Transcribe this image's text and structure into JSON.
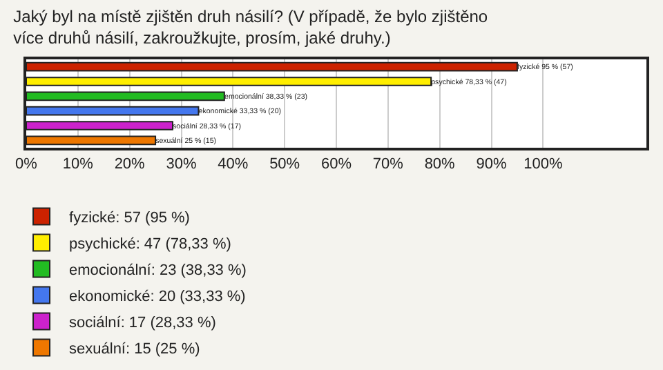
{
  "chart_data": {
    "type": "bar",
    "orientation": "horizontal",
    "title": "Jaký byl na místě zjištěn druh násilí? (V případě, že bylo zjištěno více druhů násilí, zakroužkujte, prosím, jaké druhy.)",
    "categories": [
      null,
      null,
      null,
      null,
      null,
      null
    ],
    "series": [
      {
        "name": "fyzické: 57 (95 %)",
        "color": "#cc2200",
        "values": [
          95,
          null,
          null,
          null,
          null,
          null
        ],
        "value_labels": [
          "fyzické 95 % (57)",
          null,
          null,
          null,
          null,
          null
        ]
      },
      {
        "name": "psychické: 47 (78,33 %)",
        "color": "#ffee00",
        "values": [
          null,
          78.33,
          null,
          null,
          null,
          null
        ],
        "value_labels": [
          null,
          "psychické 78,33 % (47)",
          null,
          null,
          null,
          null
        ]
      },
      {
        "name": "emocionální: 23 (38,33 %)",
        "color": "#22bb22",
        "values": [
          null,
          null,
          38.33,
          null,
          null,
          null
        ],
        "value_labels": [
          null,
          null,
          "emocionální 38,33 % (23)",
          null,
          null,
          null
        ]
      },
      {
        "name": "ekonomické: 20 (33,33 %)",
        "color": "#4477ee",
        "values": [
          null,
          null,
          null,
          33.33,
          null,
          null
        ],
        "value_labels": [
          null,
          null,
          null,
          "ekonomické 33,33 % (20)",
          null,
          null
        ]
      },
      {
        "name": "sociální: 17 (28,33 %)",
        "color": "#cc22cc",
        "values": [
          null,
          null,
          null,
          null,
          28.33,
          null
        ],
        "value_labels": [
          null,
          null,
          null,
          null,
          "sociální 28,33 % (17)",
          null
        ]
      },
      {
        "name": "sexuální: 15 (25 %)",
        "color": "#ee7700",
        "values": [
          null,
          null,
          null,
          null,
          null,
          25
        ],
        "value_labels": [
          null,
          null,
          null,
          null,
          null,
          "sexuální 25 % (15)"
        ]
      }
    ],
    "xlim": [
      0,
      120
    ],
    "xticks": [
      {
        "value": 0,
        "label": "0%"
      },
      {
        "value": 10,
        "label": "10%"
      },
      {
        "value": 20,
        "label": "20%"
      },
      {
        "value": 30,
        "label": "30%"
      },
      {
        "value": 40,
        "label": "40%"
      },
      {
        "value": 50,
        "label": "50%"
      },
      {
        "value": 60,
        "label": "60%"
      },
      {
        "value": 70,
        "label": "70%"
      },
      {
        "value": 80,
        "label": "80%"
      },
      {
        "value": 90,
        "label": "90%"
      },
      {
        "value": 100,
        "label": "100%"
      }
    ],
    "grid": "x",
    "legend": "bottom",
    "tick_labels": "x"
  }
}
